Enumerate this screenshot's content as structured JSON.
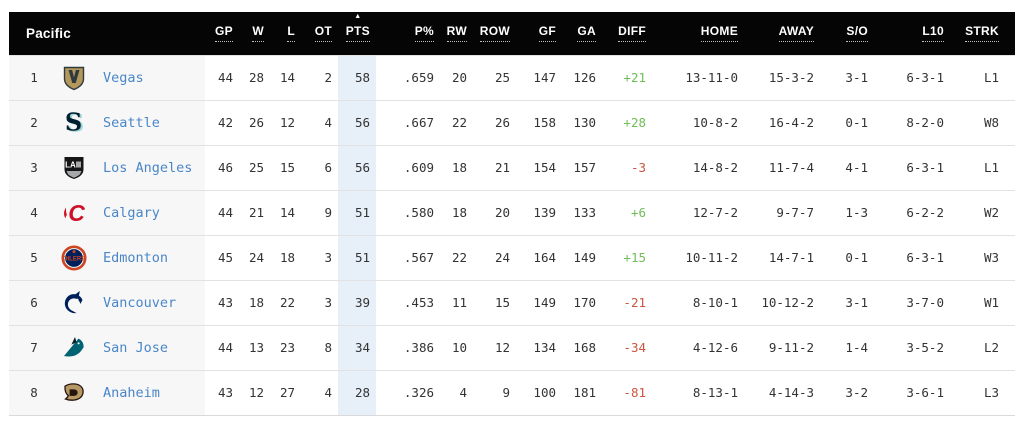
{
  "accent_colors": {
    "header_bg": "#050505",
    "header_text": "#ffffff",
    "team_link_blue": "#4a86c8",
    "positive_diff_green": "#6fbe58",
    "negative_diff_red": "#cc5540",
    "pts_column_highlight": "#e7eff9",
    "team_column_bg": "#f7f7f7"
  },
  "header": {
    "division_label": "Pacific",
    "sort": {
      "column": "pts",
      "direction_icon": "▲"
    },
    "columns": [
      {
        "key": "gp",
        "label": "GP"
      },
      {
        "key": "w",
        "label": "W"
      },
      {
        "key": "l",
        "label": "L"
      },
      {
        "key": "ot",
        "label": "OT"
      },
      {
        "key": "pts",
        "label": "PTS"
      },
      {
        "key": "ppct",
        "label": "P%"
      },
      {
        "key": "rw",
        "label": "RW"
      },
      {
        "key": "row",
        "label": "ROW"
      },
      {
        "key": "gf",
        "label": "GF"
      },
      {
        "key": "ga",
        "label": "GA"
      },
      {
        "key": "diff",
        "label": "DIFF"
      },
      {
        "key": "home",
        "label": "HOME"
      },
      {
        "key": "away",
        "label": "AWAY"
      },
      {
        "key": "so",
        "label": "S/O"
      },
      {
        "key": "l10",
        "label": "L10"
      },
      {
        "key": "strk",
        "label": "STRK"
      }
    ]
  },
  "standings": {
    "rows": [
      {
        "id": "vegas",
        "rank": "1",
        "team": "Vegas",
        "gp": "44",
        "w": "28",
        "l": "14",
        "ot": "2",
        "pts": "58",
        "ppct": ".659",
        "rw": "20",
        "row": "25",
        "gf": "147",
        "ga": "126",
        "diff": "+21",
        "home": "13-11-0",
        "away": "15-3-2",
        "so": "3-1",
        "l10": "6-3-1",
        "strk": "L1"
      },
      {
        "id": "seattle",
        "rank": "2",
        "team": "Seattle",
        "gp": "42",
        "w": "26",
        "l": "12",
        "ot": "4",
        "pts": "56",
        "ppct": ".667",
        "rw": "22",
        "row": "26",
        "gf": "158",
        "ga": "130",
        "diff": "+28",
        "home": "10-8-2",
        "away": "16-4-2",
        "so": "0-1",
        "l10": "8-2-0",
        "strk": "W8"
      },
      {
        "id": "los-angeles",
        "rank": "3",
        "team": "Los Angeles",
        "gp": "46",
        "w": "25",
        "l": "15",
        "ot": "6",
        "pts": "56",
        "ppct": ".609",
        "rw": "18",
        "row": "21",
        "gf": "154",
        "ga": "157",
        "diff": "-3",
        "home": "14-8-2",
        "away": "11-7-4",
        "so": "4-1",
        "l10": "6-3-1",
        "strk": "L1"
      },
      {
        "id": "calgary",
        "rank": "4",
        "team": "Calgary",
        "gp": "44",
        "w": "21",
        "l": "14",
        "ot": "9",
        "pts": "51",
        "ppct": ".580",
        "rw": "18",
        "row": "20",
        "gf": "139",
        "ga": "133",
        "diff": "+6",
        "home": "12-7-2",
        "away": "9-7-7",
        "so": "1-3",
        "l10": "6-2-2",
        "strk": "W2"
      },
      {
        "id": "edmonton",
        "rank": "5",
        "team": "Edmonton",
        "gp": "45",
        "w": "24",
        "l": "18",
        "ot": "3",
        "pts": "51",
        "ppct": ".567",
        "rw": "22",
        "row": "24",
        "gf": "164",
        "ga": "149",
        "diff": "+15",
        "home": "10-11-2",
        "away": "14-7-1",
        "so": "0-1",
        "l10": "6-3-1",
        "strk": "W3"
      },
      {
        "id": "vancouver",
        "rank": "6",
        "team": "Vancouver",
        "gp": "43",
        "w": "18",
        "l": "22",
        "ot": "3",
        "pts": "39",
        "ppct": ".453",
        "rw": "11",
        "row": "15",
        "gf": "149",
        "ga": "170",
        "diff": "-21",
        "home": "8-10-1",
        "away": "10-12-2",
        "so": "3-1",
        "l10": "3-7-0",
        "strk": "W1"
      },
      {
        "id": "san-jose",
        "rank": "7",
        "team": "San Jose",
        "gp": "44",
        "w": "13",
        "l": "23",
        "ot": "8",
        "pts": "34",
        "ppct": ".386",
        "rw": "10",
        "row": "12",
        "gf": "134",
        "ga": "168",
        "diff": "-34",
        "home": "4-12-6",
        "away": "9-11-2",
        "so": "1-4",
        "l10": "3-5-2",
        "strk": "L2"
      },
      {
        "id": "anaheim",
        "rank": "8",
        "team": "Anaheim",
        "gp": "43",
        "w": "12",
        "l": "27",
        "ot": "4",
        "pts": "28",
        "ppct": ".326",
        "rw": "4",
        "row": "9",
        "gf": "100",
        "ga": "181",
        "diff": "-81",
        "home": "8-13-1",
        "away": "4-14-3",
        "so": "3-2",
        "l10": "3-6-1",
        "strk": "L3"
      }
    ]
  }
}
